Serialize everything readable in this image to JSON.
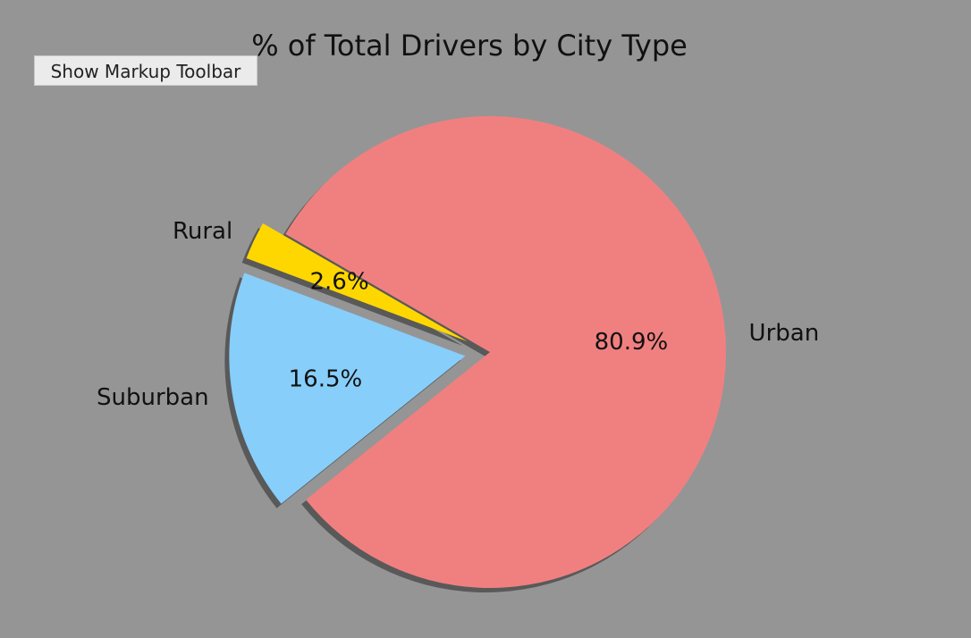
{
  "toolbar": {
    "button_label": "Show Markup Toolbar"
  },
  "chart_data": {
    "type": "pie",
    "title": "% of Total Drivers by City Type",
    "slices": [
      {
        "label": "Rural",
        "value": 2.6,
        "pct_label": "2.6%",
        "color": "#ffd700",
        "exploded": true
      },
      {
        "label": "Suburban",
        "value": 16.5,
        "pct_label": "16.5%",
        "color": "#87cefa",
        "exploded": true
      },
      {
        "label": "Urban",
        "value": 80.9,
        "pct_label": "80.9%",
        "color": "#f08080",
        "exploded": false
      }
    ],
    "shadow": true,
    "legend": "none"
  }
}
